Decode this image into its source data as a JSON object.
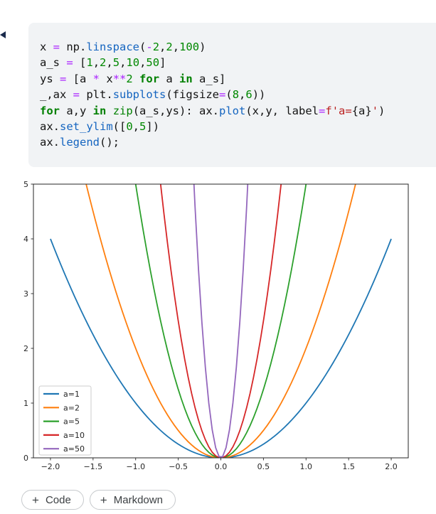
{
  "cell": {
    "code_lines": [
      [
        {
          "t": "x ",
          "c": "p"
        },
        {
          "t": "=",
          "c": "o"
        },
        {
          "t": " np.",
          "c": "p"
        },
        {
          "t": "linspace",
          "c": "f"
        },
        {
          "t": "(",
          "c": "p"
        },
        {
          "t": "-",
          "c": "o"
        },
        {
          "t": "2",
          "c": "n"
        },
        {
          "t": ",",
          "c": "p"
        },
        {
          "t": "2",
          "c": "n"
        },
        {
          "t": ",",
          "c": "p"
        },
        {
          "t": "100",
          "c": "n"
        },
        {
          "t": ")",
          "c": "p"
        }
      ],
      [
        {
          "t": "a_s ",
          "c": "p"
        },
        {
          "t": "=",
          "c": "o"
        },
        {
          "t": " [",
          "c": "p"
        },
        {
          "t": "1",
          "c": "n"
        },
        {
          "t": ",",
          "c": "p"
        },
        {
          "t": "2",
          "c": "n"
        },
        {
          "t": ",",
          "c": "p"
        },
        {
          "t": "5",
          "c": "n"
        },
        {
          "t": ",",
          "c": "p"
        },
        {
          "t": "10",
          "c": "n"
        },
        {
          "t": ",",
          "c": "p"
        },
        {
          "t": "50",
          "c": "n"
        },
        {
          "t": "]",
          "c": "p"
        }
      ],
      [
        {
          "t": "ys ",
          "c": "p"
        },
        {
          "t": "=",
          "c": "o"
        },
        {
          "t": " [a ",
          "c": "p"
        },
        {
          "t": "*",
          "c": "o"
        },
        {
          "t": " x",
          "c": "p"
        },
        {
          "t": "**",
          "c": "o"
        },
        {
          "t": "2",
          "c": "n"
        },
        {
          "t": " ",
          "c": "p"
        },
        {
          "t": "for",
          "c": "k"
        },
        {
          "t": " a ",
          "c": "p"
        },
        {
          "t": "in",
          "c": "k"
        },
        {
          "t": " a_s]",
          "c": "p"
        }
      ],
      [
        {
          "t": "_,ax ",
          "c": "p"
        },
        {
          "t": "=",
          "c": "o"
        },
        {
          "t": " plt.",
          "c": "p"
        },
        {
          "t": "subplots",
          "c": "f"
        },
        {
          "t": "(figsize",
          "c": "p"
        },
        {
          "t": "=",
          "c": "o"
        },
        {
          "t": "(",
          "c": "p"
        },
        {
          "t": "8",
          "c": "n"
        },
        {
          "t": ",",
          "c": "p"
        },
        {
          "t": "6",
          "c": "n"
        },
        {
          "t": "))",
          "c": "p"
        }
      ],
      [
        {
          "t": "for",
          "c": "k"
        },
        {
          "t": " a,y ",
          "c": "p"
        },
        {
          "t": "in",
          "c": "k"
        },
        {
          "t": " ",
          "c": "p"
        },
        {
          "t": "zip",
          "c": "b"
        },
        {
          "t": "(a_s,ys): ax.",
          "c": "p"
        },
        {
          "t": "plot",
          "c": "f"
        },
        {
          "t": "(x,y, label",
          "c": "p"
        },
        {
          "t": "=",
          "c": "o"
        },
        {
          "t": "f",
          "c": "s"
        },
        {
          "t": "'a=",
          "c": "s"
        },
        {
          "t": "{a}",
          "c": "p"
        },
        {
          "t": "'",
          "c": "s"
        },
        {
          "t": ")",
          "c": "p"
        }
      ],
      [
        {
          "t": "ax.",
          "c": "p"
        },
        {
          "t": "set_ylim",
          "c": "f"
        },
        {
          "t": "([",
          "c": "p"
        },
        {
          "t": "0",
          "c": "n"
        },
        {
          "t": ",",
          "c": "p"
        },
        {
          "t": "5",
          "c": "n"
        },
        {
          "t": "])",
          "c": "p"
        }
      ],
      [
        {
          "t": "ax.",
          "c": "p"
        },
        {
          "t": "legend",
          "c": "f"
        },
        {
          "t": "();",
          "c": "p"
        }
      ]
    ]
  },
  "syntax_colors": {
    "operator": "#aa22ff",
    "keyword": "#008000",
    "builtin": "#008000",
    "function": "#1565c0",
    "number": "#008800",
    "string": "#ba2121",
    "plain": "#141414"
  },
  "chart_data": {
    "type": "line",
    "title": "",
    "xlabel": "",
    "ylabel": "",
    "formula": "y = a * x**2",
    "x_sampling": {
      "start": -2,
      "stop": 2,
      "num": 100
    },
    "xlim": [
      -2.2,
      2.2
    ],
    "ylim": [
      0,
      5
    ],
    "x_tick_values": [
      -2.0,
      -1.5,
      -1.0,
      -0.5,
      0.0,
      0.5,
      1.0,
      1.5,
      2.0
    ],
    "x_ticks": [
      "−2.0",
      "−1.5",
      "−1.0",
      "−0.5",
      "0.0",
      "0.5",
      "1.0",
      "1.5",
      "2.0"
    ],
    "y_tick_values": [
      0,
      1,
      2,
      3,
      4,
      5
    ],
    "y_ticks": [
      "0",
      "1",
      "2",
      "3",
      "4",
      "5"
    ],
    "grid": false,
    "legend": {
      "position": "lower-left",
      "entries": [
        "a=1",
        "a=2",
        "a=5",
        "a=10",
        "a=50"
      ]
    },
    "series": [
      {
        "name": "a=1",
        "a": 1,
        "color": "#1f77b4"
      },
      {
        "name": "a=2",
        "a": 2,
        "color": "#ff7f0e"
      },
      {
        "name": "a=5",
        "a": 5,
        "color": "#2ca02c"
      },
      {
        "name": "a=10",
        "a": 10,
        "color": "#d62728"
      },
      {
        "name": "a=50",
        "a": 50,
        "color": "#9467bd"
      }
    ],
    "axis_color": "#262626",
    "legend_border_color": "#cccccc"
  },
  "toolbar": {
    "plus": "+",
    "add_code_label": "Code",
    "add_markdown_label": "Markdown"
  }
}
